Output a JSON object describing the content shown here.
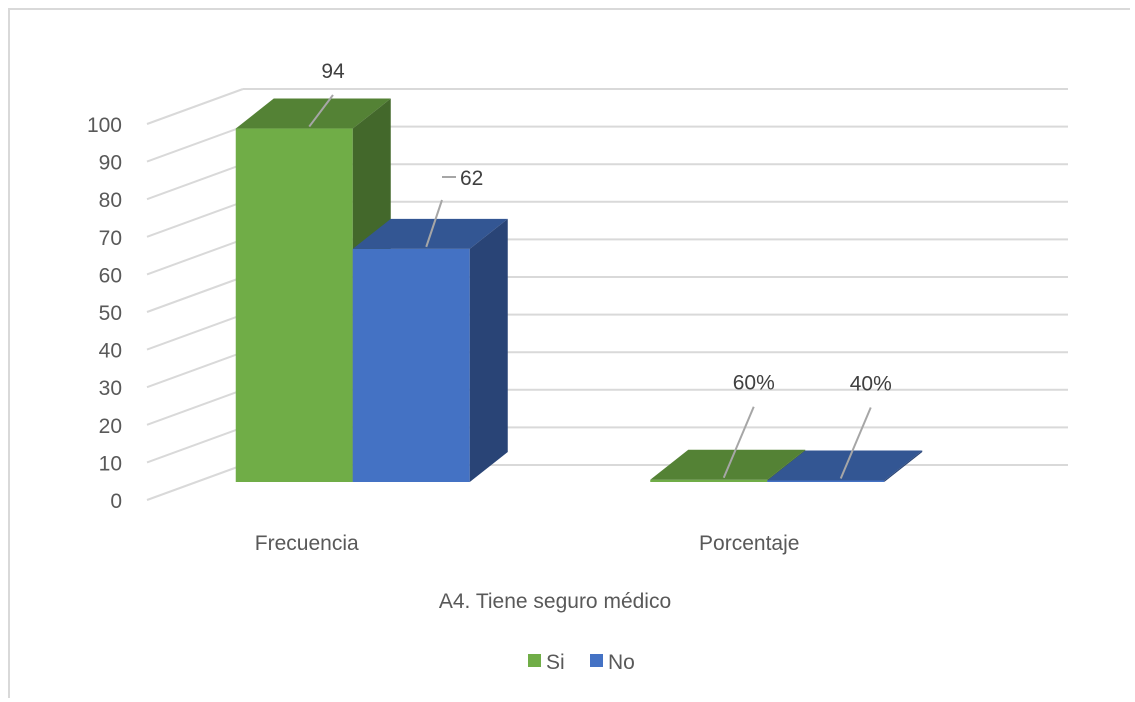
{
  "chart_data": {
    "type": "bar",
    "style": "3d-clustered-column",
    "title": "",
    "xlabel": "A4. Tiene seguro médico",
    "ylabel": "",
    "ylim": [
      0,
      100
    ],
    "yticks": [
      "0",
      "10",
      "20",
      "30",
      "40",
      "50",
      "60",
      "70",
      "80",
      "90",
      "100"
    ],
    "categories": [
      "Frecuencia",
      "Porcentaje"
    ],
    "series": [
      {
        "name": "Si",
        "color": "#70ad47",
        "values": [
          94,
          0.6
        ],
        "labels": [
          "94",
          "60%"
        ]
      },
      {
        "name": "No",
        "color": "#4472c4",
        "values": [
          62,
          0.4
        ],
        "labels": [
          "62",
          "40%"
        ]
      }
    ],
    "grid": true,
    "legend": "bottom"
  }
}
